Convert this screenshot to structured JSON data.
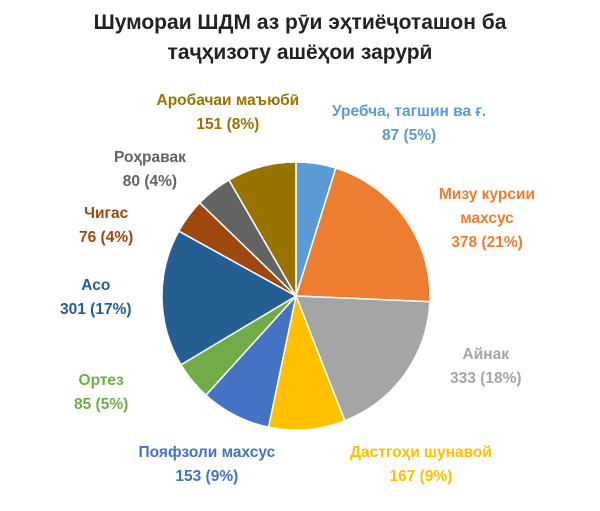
{
  "chart_data": {
    "type": "pie",
    "title_lines": [
      "Шумораи ШДМ аз рӯи эҳтиёҷоташон ба",
      "таҷҳизоту ашёҳои зарурӣ"
    ],
    "slices": [
      {
        "name_lines": [
          "Уребча, тагшин ва ғ."
        ],
        "value": 87,
        "value_label": "87 (5%)",
        "color": "#5b9bd5"
      },
      {
        "name_lines": [
          "Мизу курсии",
          "махсус"
        ],
        "value": 378,
        "value_label": "378 (21%)",
        "color": "#ed7d31"
      },
      {
        "name_lines": [
          "Айнак"
        ],
        "value": 333,
        "value_label": "333 (18%)",
        "color": "#a5a5a5"
      },
      {
        "name_lines": [
          "Дастгоҳи шунавой"
        ],
        "value": 167,
        "value_label": "167 (9%)",
        "color": "#ffc000"
      },
      {
        "name_lines": [
          "Пояфзоли махсус"
        ],
        "value": 153,
        "value_label": "153 (9%)",
        "color": "#4472c4"
      },
      {
        "name_lines": [
          "Ортез"
        ],
        "value": 85,
        "value_label": "85 (5%)",
        "color": "#70ad47"
      },
      {
        "name_lines": [
          "Асо"
        ],
        "value": 301,
        "value_label": "301 (17%)",
        "color": "#255e91"
      },
      {
        "name_lines": [
          "Чигас"
        ],
        "value": 76,
        "value_label": "76 (4%)",
        "color": "#9e480e"
      },
      {
        "name_lines": [
          "Роҳравак"
        ],
        "value": 80,
        "value_label": "80 (4%)",
        "color": "#636363"
      },
      {
        "name_lines": [
          "Аробачаи маъюбӣ"
        ],
        "value": 151,
        "value_label": "151 (8%)",
        "color": "#997300"
      }
    ],
    "label_colors": [
      "#5b9bd5",
      "#ed7d31",
      "#a5a5a5",
      "#ffc000",
      "#4472c4",
      "#70ad47",
      "#255e91",
      "#9e480e",
      "#636363",
      "#997300"
    ]
  }
}
